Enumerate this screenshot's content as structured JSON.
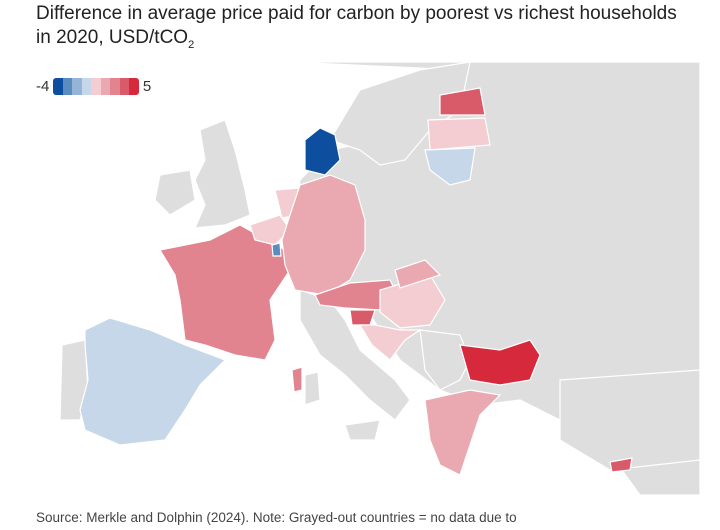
{
  "title_main": "Difference in average price paid for carbon by poorest vs richest households in 2020, USD/tCO",
  "title_sub": "2",
  "legend": {
    "min_label": "-4",
    "max_label": "5",
    "colors": [
      "#0d4f9e",
      "#5b8cbf",
      "#95b5d8",
      "#c5d7e8",
      "#f3cdd2",
      "#eaa8b1",
      "#e2848f",
      "#d95b69",
      "#d62a3c"
    ]
  },
  "source": "Source: Merkle and Dolphin (2024). Note: Grayed-out countries = no data due to",
  "colors": {
    "nodata": "#dedede",
    "border": "#ffffff"
  }
}
